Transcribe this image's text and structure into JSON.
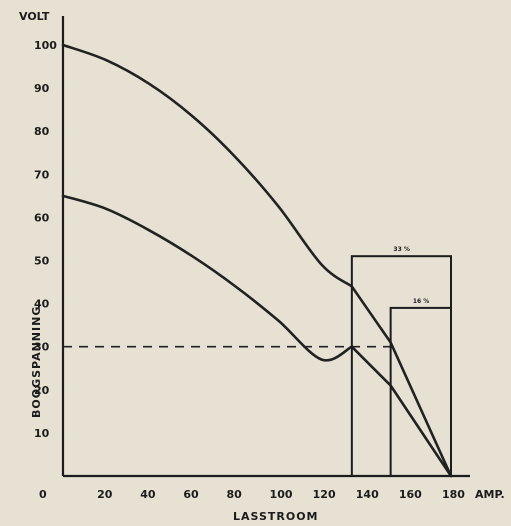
{
  "chart_data": {
    "type": "line",
    "xlabel": "LASSTROOM",
    "ylabel": "BOOGSPANNING",
    "x_unit": "AMP.",
    "y_unit": "VOLT",
    "xlim": [
      0,
      180
    ],
    "ylim": [
      0,
      100
    ],
    "x_ticks": [
      "0",
      "20",
      "40",
      "60",
      "80",
      "100",
      "120",
      "140",
      "160",
      "180"
    ],
    "y_ticks": [
      "10",
      "20",
      "30",
      "40",
      "50",
      "60",
      "70",
      "80",
      "90",
      "100"
    ],
    "grid": false,
    "series": [
      {
        "x": [
          0,
          20,
          40,
          60,
          80,
          100,
          120,
          134,
          152,
          180
        ],
        "y": [
          100,
          96.5,
          91,
          83.5,
          74,
          62.5,
          49,
          44,
          31,
          0
        ]
      },
      {
        "x": [
          0,
          20,
          40,
          60,
          80,
          100,
          120,
          134,
          152,
          180
        ],
        "y": [
          65,
          62,
          57,
          51,
          44,
          36,
          27,
          30,
          21,
          0
        ]
      }
    ],
    "reference_line": {
      "y": 30,
      "x_from": 0,
      "x_to": 152
    },
    "boxes": [
      {
        "label": "33 %",
        "x_from": 134,
        "x_to": 180,
        "top": 51
      },
      {
        "label": "16 %",
        "x_from": 152,
        "x_to": 180,
        "top": 39
      }
    ]
  }
}
